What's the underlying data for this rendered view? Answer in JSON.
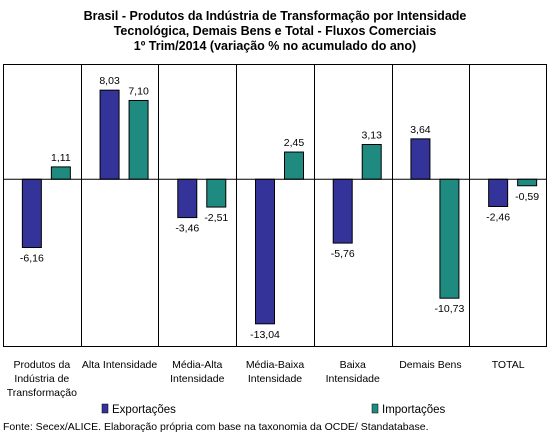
{
  "chart_data": {
    "type": "bar",
    "title_lines": [
      "Brasil - Produtos da Indústria de Transformação por Intensidade",
      "Tecnológica, Demais Bens e Total - Fluxos Comerciais",
      "1º Trim/2014 (variação % no acumulado do ano)"
    ],
    "categories": [
      [
        "Produtos da",
        "Indústria de",
        "Transformação"
      ],
      [
        "Alta Intensidade"
      ],
      [
        "Média-Alta",
        "Intensidade"
      ],
      [
        "Média-Baixa",
        "Intensidade"
      ],
      [
        "Baixa",
        "Intensidade"
      ],
      [
        "Demais Bens"
      ],
      [
        "TOTAL"
      ]
    ],
    "series": [
      {
        "name": "Exportações",
        "color": "#333399",
        "values": [
          -6.16,
          8.03,
          -3.46,
          -13.04,
          -5.76,
          3.64,
          -2.46
        ],
        "labels": [
          "-6,16",
          "8,03",
          "-3,46",
          "-13,04",
          "-5,76",
          "3,64",
          "-2,46"
        ]
      },
      {
        "name": "Importações",
        "color": "#1f8a80",
        "values": [
          1.11,
          7.1,
          -2.51,
          2.45,
          3.13,
          -10.73,
          -0.59
        ],
        "labels": [
          "1,11",
          "7,10",
          "-2,51",
          "2,45",
          "3,13",
          "-10,73",
          "-0,59"
        ]
      }
    ],
    "ylim": [
      -14.5,
      10.3
    ],
    "grid": false,
    "vertical_separators": true,
    "legend": "bottom"
  },
  "source": "Fonte: Secex/ALICE. Elaboração própria com base na taxonomia da OCDE/ Standatabase."
}
